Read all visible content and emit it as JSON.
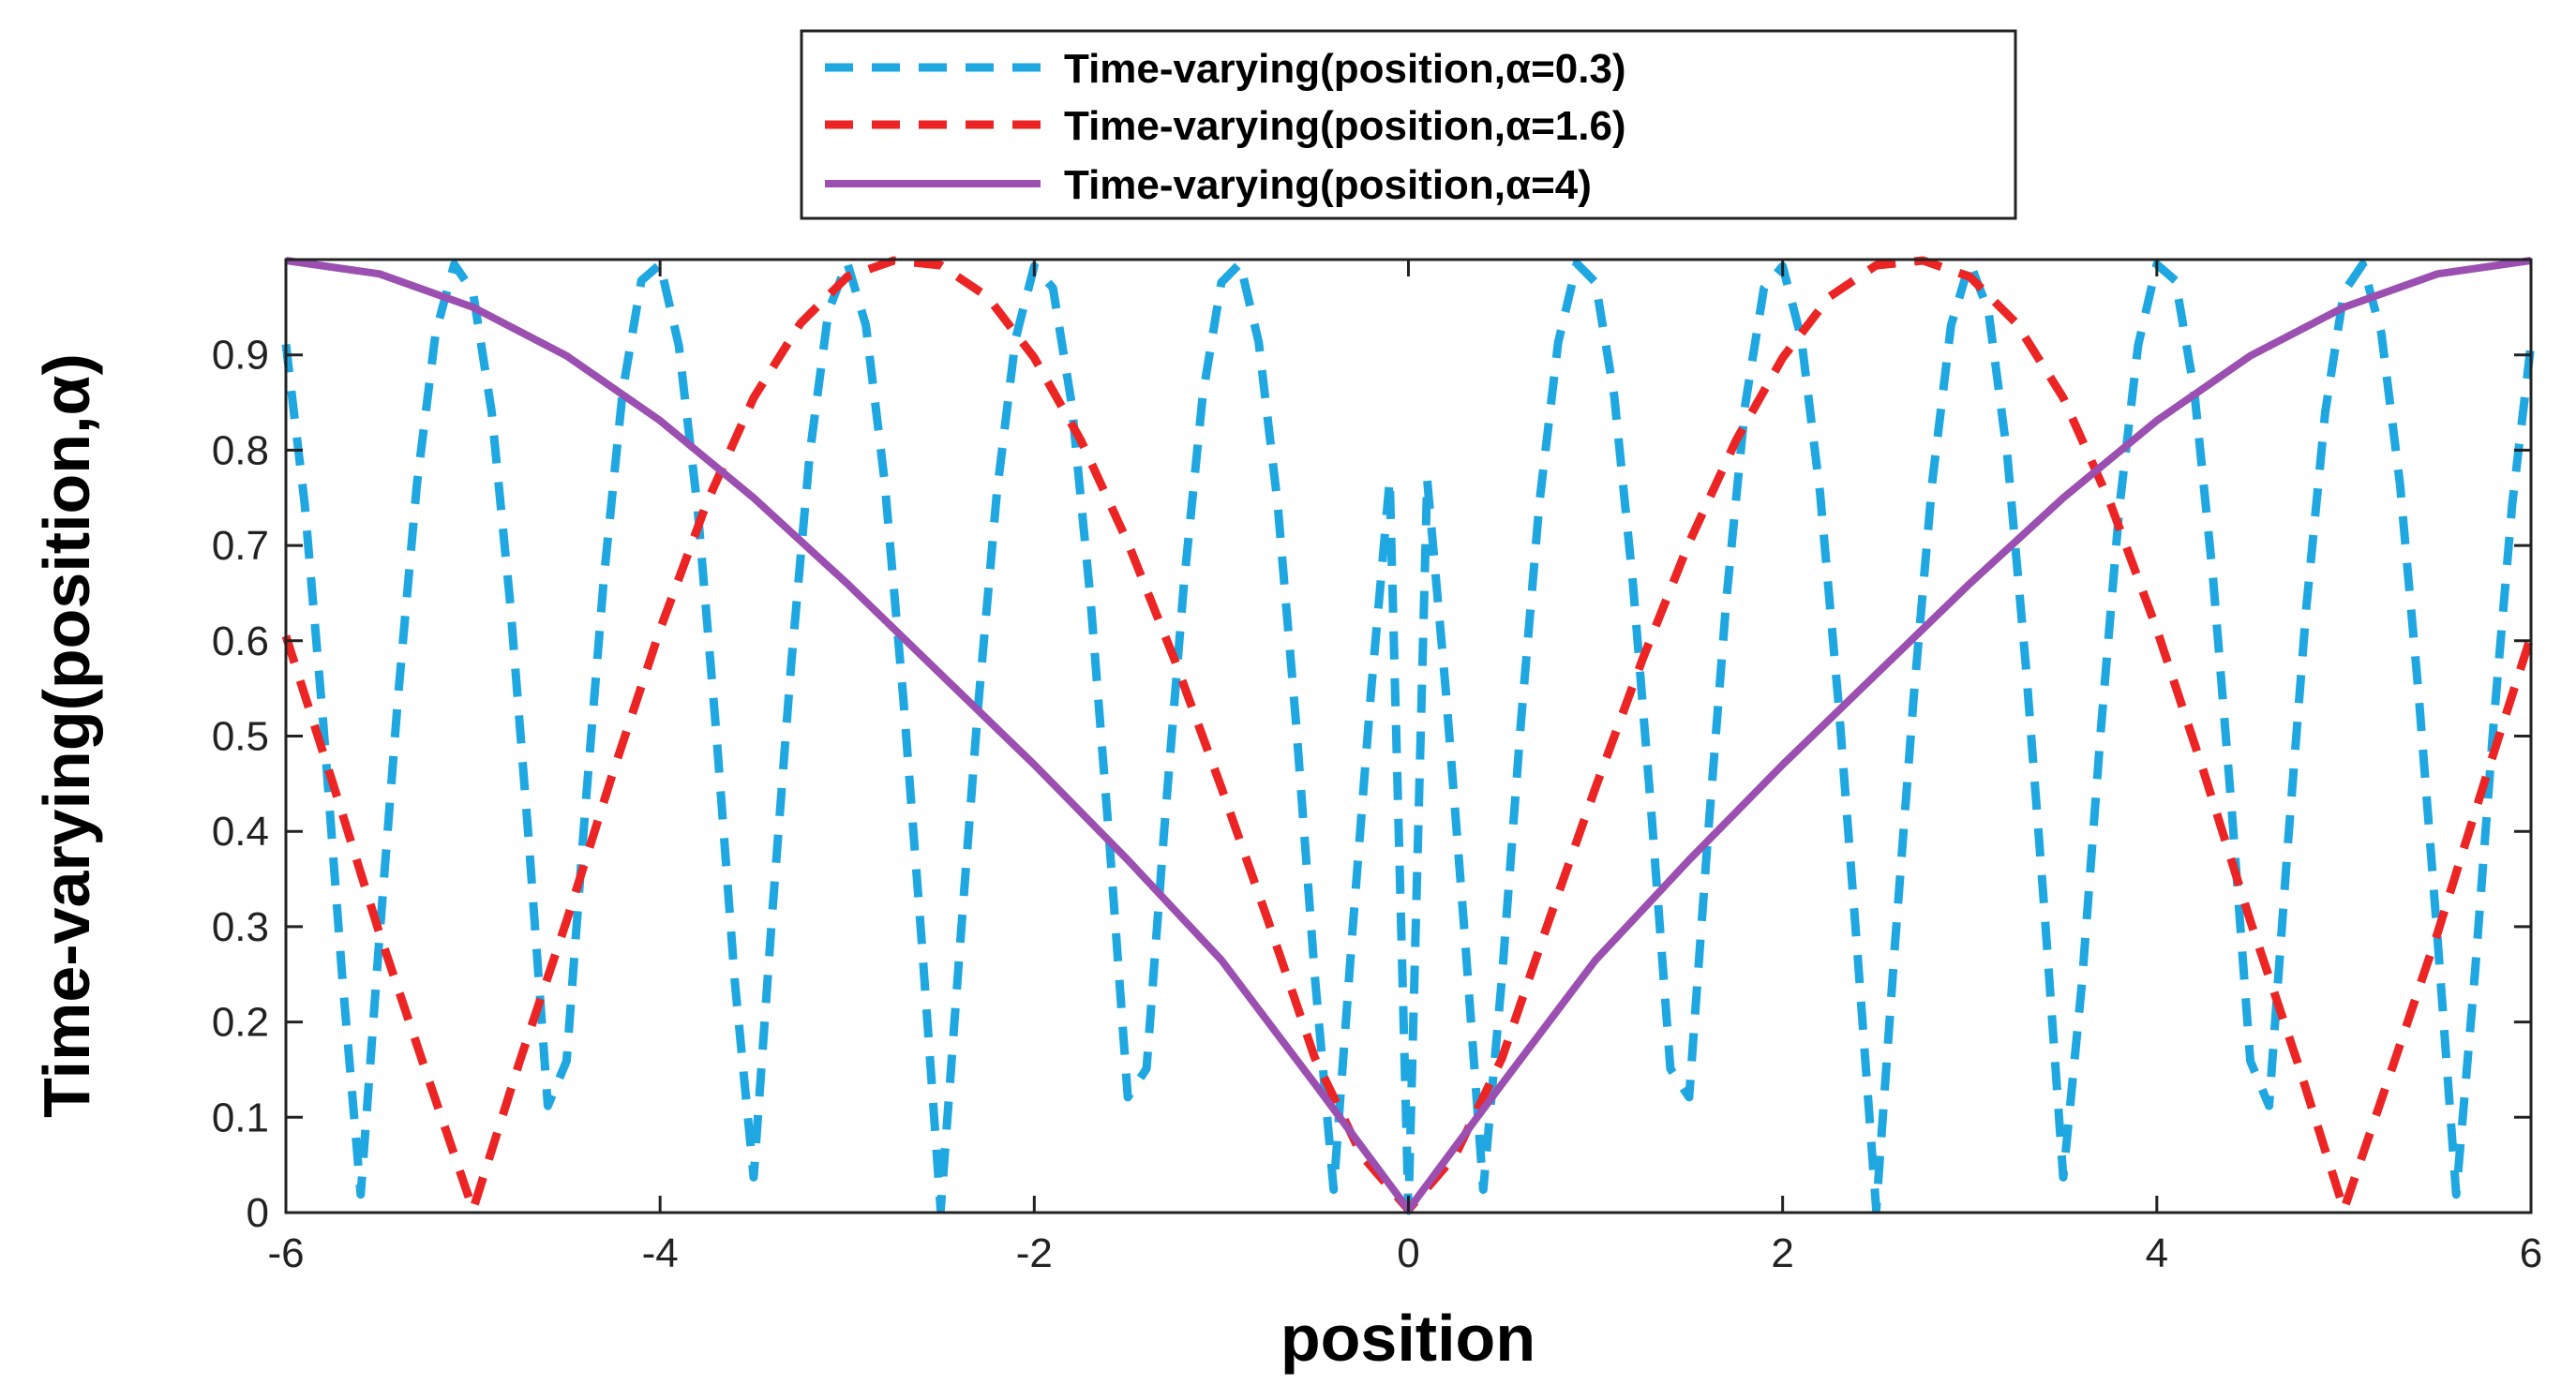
{
  "chart_data": {
    "type": "line",
    "title": "",
    "xlabel": "position",
    "ylabel": "Time-varying(position,α)",
    "xlim": [
      -6,
      6
    ],
    "ylim": [
      0,
      1
    ],
    "xticks": [
      -6,
      -4,
      -2,
      0,
      2,
      4,
      6
    ],
    "xtick_labels": [
      "-6",
      "-4",
      "-2",
      "0",
      "2",
      "4",
      "6"
    ],
    "yticks": [
      0,
      0.1,
      0.2,
      0.3,
      0.4,
      0.5,
      0.6,
      0.7,
      0.8,
      0.9
    ],
    "ytick_labels": [
      "0",
      "0.1",
      "0.2",
      "0.3",
      "0.4",
      "0.5",
      "0.6",
      "0.7",
      "0.8",
      "0.9"
    ],
    "grid": false,
    "legend_position": "top-center, outside plot",
    "series": [
      {
        "name": "Time-varying(position,α=0.3)",
        "style": "dashed",
        "color": "#1ea7e1",
        "x": [
          -6,
          -5.9,
          -5.8,
          -5.7,
          -5.6,
          -5.5,
          -5.4,
          -5.3,
          -5.2,
          -5.1,
          -5,
          -4.9,
          -4.8,
          -4.7,
          -4.6,
          -4.5,
          -4.4,
          -4.3,
          -4.2,
          -4.1,
          -4,
          -3.9,
          -3.8,
          -3.7,
          -3.6,
          -3.5,
          -3.4,
          -3.3,
          -3.2,
          -3.1,
          -3,
          -2.9,
          -2.8,
          -2.7,
          -2.6,
          -2.5,
          -2.4,
          -2.3,
          -2.2,
          -2.1,
          -2,
          -1.9,
          -1.8,
          -1.7,
          -1.6,
          -1.5,
          -1.4,
          -1.3,
          -1.2,
          -1.1,
          -1,
          -0.9,
          -0.8,
          -0.7,
          -0.6,
          -0.5,
          -0.4,
          -0.3,
          -0.2,
          -0.1,
          0,
          0.1,
          0.2,
          0.3,
          0.4,
          0.5,
          0.6,
          0.7,
          0.8,
          0.9,
          1,
          1.1,
          1.2,
          1.3,
          1.4,
          1.5,
          1.6,
          1.7,
          1.8,
          1.9,
          2,
          2.1,
          2.2,
          2.3,
          2.4,
          2.5,
          2.6,
          2.7,
          2.8,
          2.9,
          3,
          3.1,
          3.2,
          3.3,
          3.4,
          3.5,
          3.6,
          3.7,
          3.8,
          3.9,
          4,
          4.1,
          4.2,
          4.3,
          4.4,
          4.5,
          4.6,
          4.7,
          4.8,
          4.9,
          5,
          5.1,
          5.2,
          5.3,
          5.4,
          5.5,
          5.6,
          5.7,
          5.8,
          5.9,
          6
        ],
        "values": [
          0.911,
          0.744,
          0.513,
          0.25,
          0.019,
          0.289,
          0.542,
          0.764,
          0.923,
          0.995,
          0.966,
          0.84,
          0.637,
          0.385,
          0.112,
          0.159,
          0.423,
          0.667,
          0.862,
          0.978,
          0.995,
          0.91,
          0.74,
          0.505,
          0.241,
          0.037,
          0.315,
          0.574,
          0.796,
          0.946,
          0.997,
          0.931,
          0.767,
          0.54,
          0.28,
          0.003,
          0.272,
          0.532,
          0.755,
          0.917,
          0.993,
          0.97,
          0.848,
          0.645,
          0.393,
          0.121,
          0.151,
          0.415,
          0.66,
          0.857,
          0.976,
          0.996,
          0.913,
          0.745,
          0.511,
          0.247,
          0.024,
          0.293,
          0.547,
          0.769,
          0.002,
          0.769,
          0.547,
          0.293,
          0.024,
          0.247,
          0.511,
          0.745,
          0.913,
          0.996,
          0.976,
          0.857,
          0.66,
          0.415,
          0.151,
          0.121,
          0.393,
          0.645,
          0.848,
          0.97,
          0.993,
          0.917,
          0.755,
          0.532,
          0.272,
          0.003,
          0.28,
          0.54,
          0.767,
          0.931,
          0.997,
          0.946,
          0.796,
          0.574,
          0.315,
          0.037,
          0.241,
          0.505,
          0.74,
          0.91,
          0.995,
          0.978,
          0.862,
          0.667,
          0.423,
          0.159,
          0.112,
          0.385,
          0.637,
          0.84,
          0.966,
          0.995,
          0.923,
          0.764,
          0.542,
          0.289,
          0.019,
          0.25,
          0.513,
          0.744,
          0.911
        ]
      },
      {
        "name": "Time-varying(position,α=1.6)",
        "style": "dashed",
        "color": "#ec2424",
        "x": [
          -6,
          -5.75,
          -5.5,
          -5.25,
          -5,
          -4.75,
          -4.5,
          -4.25,
          -4,
          -3.75,
          -3.5,
          -3.25,
          -3,
          -2.75,
          -2.5,
          -2.25,
          -2,
          -1.75,
          -1.5,
          -1.25,
          -1,
          -0.75,
          -0.5,
          -0.25,
          0,
          0.25,
          0.5,
          0.75,
          1,
          1.25,
          1.5,
          1.75,
          2,
          2.25,
          2.5,
          2.75,
          3,
          3.25,
          3.5,
          3.75,
          4,
          4.25,
          4.5,
          4.75,
          5,
          5.25,
          5.5,
          5.75,
          6
        ],
        "values": [
          0.605,
          0.451,
          0.293,
          0.147,
          0.003,
          0.159,
          0.306,
          0.463,
          0.612,
          0.745,
          0.855,
          0.933,
          0.982,
          0.999,
          0.994,
          0.961,
          0.897,
          0.81,
          0.703,
          0.58,
          0.446,
          0.306,
          0.162,
          0.06,
          0.003,
          0.06,
          0.162,
          0.306,
          0.446,
          0.58,
          0.703,
          0.81,
          0.897,
          0.961,
          0.994,
          0.999,
          0.982,
          0.933,
          0.855,
          0.745,
          0.612,
          0.463,
          0.306,
          0.159,
          0.003,
          0.147,
          0.293,
          0.451,
          0.605
        ]
      },
      {
        "name": "Time-varying(position,α=4)",
        "style": "solid",
        "color": "#9b4fb0",
        "x": [
          -6,
          -5.5,
          -5,
          -4.5,
          -4,
          -3.5,
          -3,
          -2.5,
          -2,
          -1.5,
          -1,
          -0.5,
          0,
          0.5,
          1,
          1.5,
          2,
          2.5,
          3,
          3.5,
          4,
          4.5,
          5,
          5.5,
          6
        ],
        "values": [
          0.999,
          0.985,
          0.95,
          0.899,
          0.831,
          0.75,
          0.66,
          0.565,
          0.47,
          0.37,
          0.265,
          0.135,
          0.003,
          0.135,
          0.265,
          0.37,
          0.47,
          0.565,
          0.66,
          0.75,
          0.831,
          0.899,
          0.95,
          0.985,
          0.999
        ]
      }
    ]
  }
}
